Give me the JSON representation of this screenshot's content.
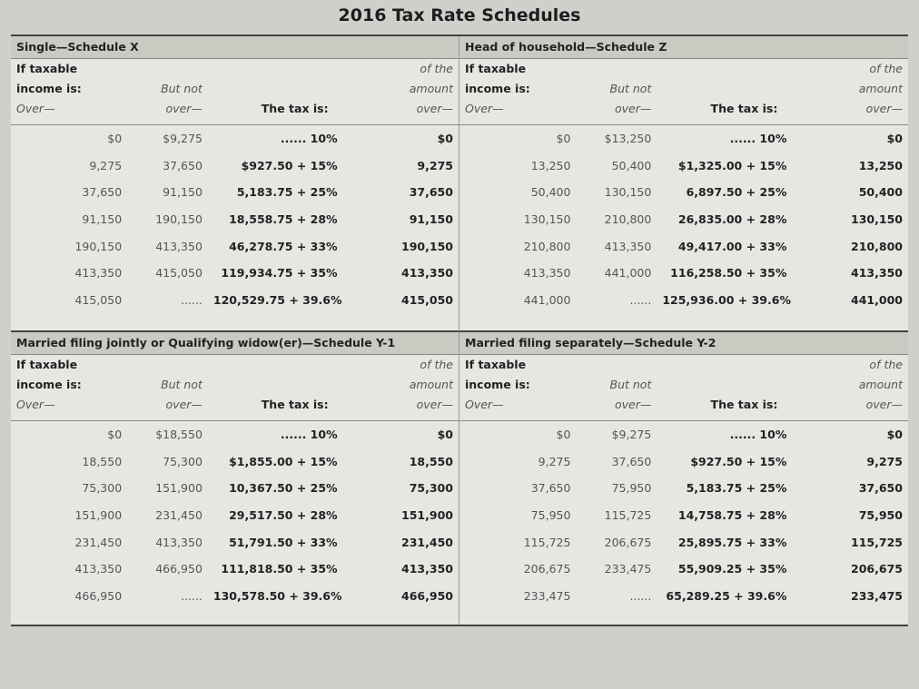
{
  "title": "2016 Tax Rate Schedules",
  "header": [
    [
      "If taxable",
      "income is:",
      "Over—"
    ],
    [
      "But not",
      "over—"
    ],
    [
      "The tax is:"
    ],
    [
      "of the",
      "amount",
      "over—"
    ]
  ],
  "schedules": [
    {
      "title": "Single—Schedule X",
      "rows": [
        [
          "$0",
          "$9,275",
          "...... 10%",
          "$0"
        ],
        [
          "9,275",
          "37,650",
          "$927.50 + 15%",
          "9,275"
        ],
        [
          "37,650",
          "91,150",
          "5,183.75 + 25%",
          "37,650"
        ],
        [
          "91,150",
          "190,150",
          "18,558.75 + 28%",
          "91,150"
        ],
        [
          "190,150",
          "413,350",
          "46,278.75 + 33%",
          "190,150"
        ],
        [
          "413,350",
          "415,050",
          "119,934.75 + 35%",
          "413,350"
        ],
        [
          "415,050",
          "......",
          "120,529.75 + 39.6%",
          "415,050"
        ]
      ]
    },
    {
      "title": "Head of household—Schedule Z",
      "rows": [
        [
          "$0",
          "$13,250",
          "...... 10%",
          "$0"
        ],
        [
          "13,250",
          "50,400",
          "$1,325.00 + 15%",
          "13,250"
        ],
        [
          "50,400",
          "130,150",
          "6,897.50 + 25%",
          "50,400"
        ],
        [
          "130,150",
          "210,800",
          "26,835.00 + 28%",
          "130,150"
        ],
        [
          "210,800",
          "413,350",
          "49,417.00 + 33%",
          "210,800"
        ],
        [
          "413,350",
          "441,000",
          "116,258.50 + 35%",
          "413,350"
        ],
        [
          "441,000",
          "......",
          "125,936.00 + 39.6%",
          "441,000"
        ]
      ]
    },
    {
      "title": "Married filing jointly or Qualifying widow(er)—Schedule Y-1",
      "rows": [
        [
          "$0",
          "$18,550",
          "...... 10%",
          "$0"
        ],
        [
          "18,550",
          "75,300",
          "$1,855.00 + 15%",
          "18,550"
        ],
        [
          "75,300",
          "151,900",
          "10,367.50 + 25%",
          "75,300"
        ],
        [
          "151,900",
          "231,450",
          "29,517.50 + 28%",
          "151,900"
        ],
        [
          "231,450",
          "413,350",
          "51,791.50 + 33%",
          "231,450"
        ],
        [
          "413,350",
          "466,950",
          "111,818.50 + 35%",
          "413,350"
        ],
        [
          "466,950",
          "......",
          "130,578.50 + 39.6%",
          "466,950"
        ]
      ]
    },
    {
      "title": "Married filing separately—Schedule Y-2",
      "rows": [
        [
          "$0",
          "$9,275",
          "...... 10%",
          "$0"
        ],
        [
          "9,275",
          "37,650",
          "$927.50 + 15%",
          "9,275"
        ],
        [
          "37,650",
          "75,950",
          "5,183.75 + 25%",
          "37,650"
        ],
        [
          "75,950",
          "115,725",
          "14,758.75 + 28%",
          "75,950"
        ],
        [
          "115,725",
          "206,675",
          "25,895.75 + 33%",
          "115,725"
        ],
        [
          "206,675",
          "233,475",
          "55,909.25 + 35%",
          "206,675"
        ],
        [
          "233,475",
          "......",
          "65,289.25 + 39.6%",
          "233,475"
        ]
      ]
    }
  ]
}
